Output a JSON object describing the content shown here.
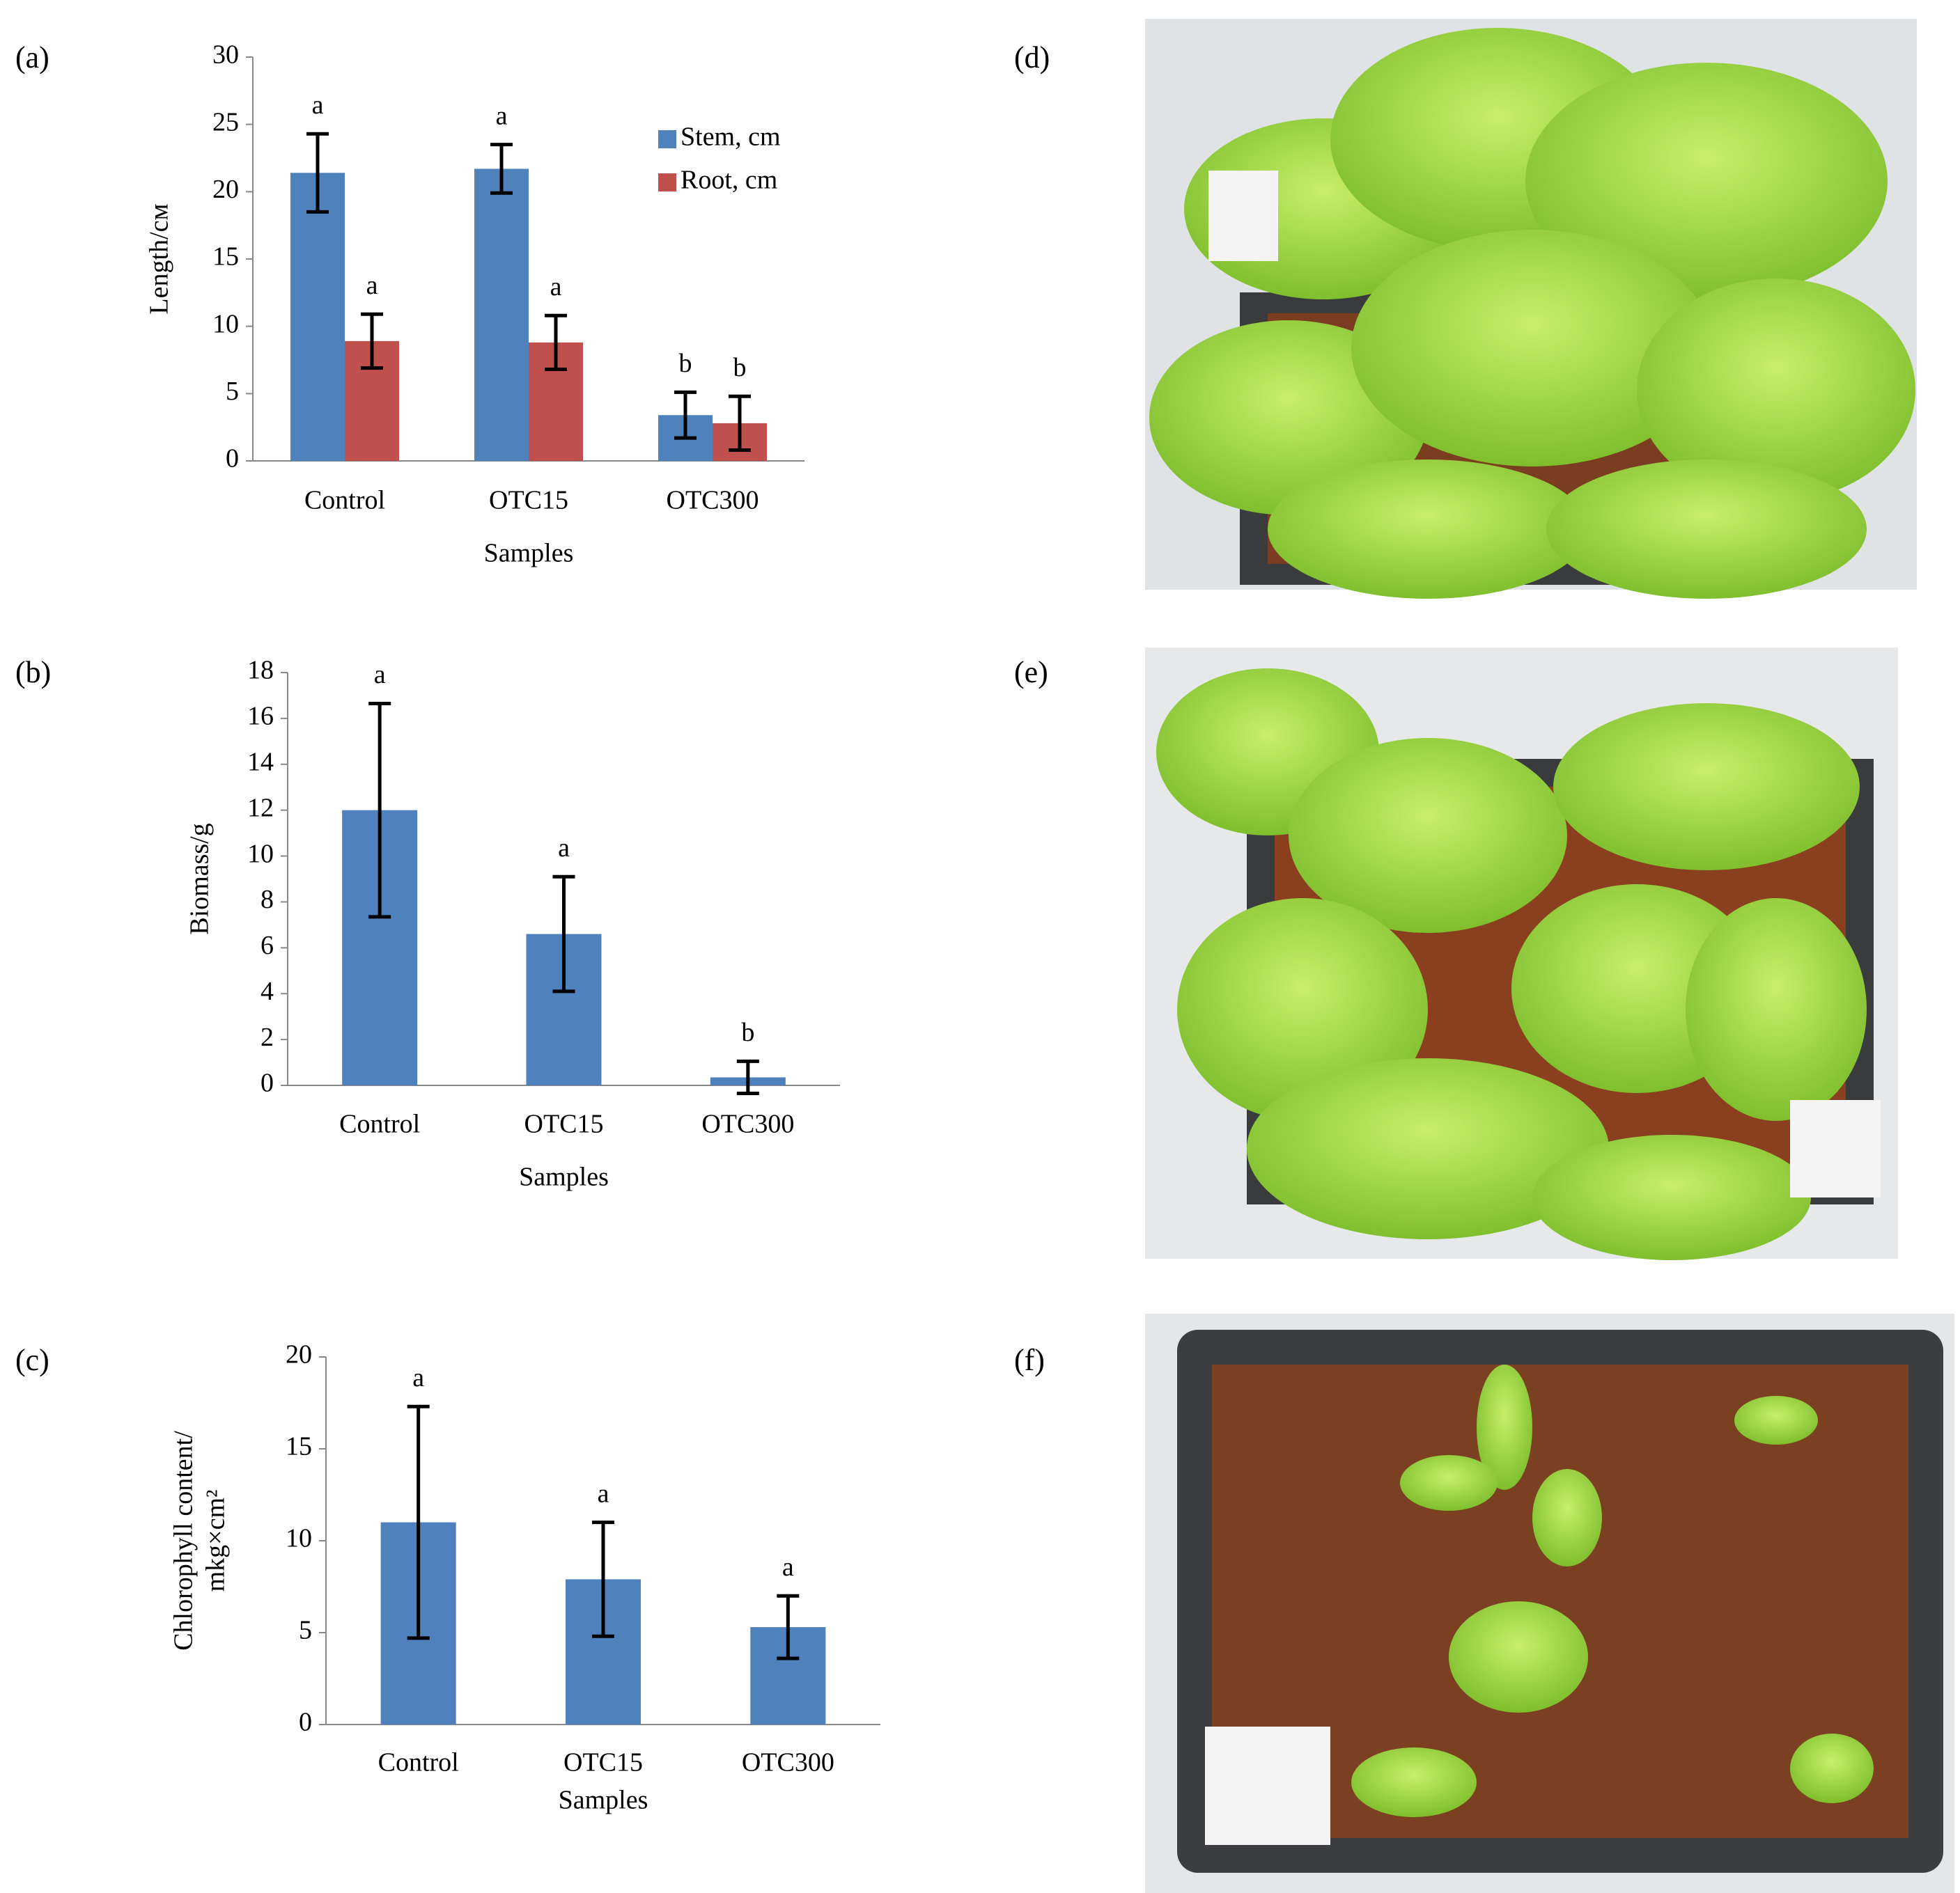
{
  "chart_data": [
    {
      "type": "bar",
      "panel_label": "(a)",
      "xlabel": "Samples",
      "ylabel": [
        "Length/см"
      ],
      "categories": [
        "Control",
        "OTC15",
        "OTC300"
      ],
      "series": [
        {
          "name": "Stem, cm",
          "color": "#4f81bd",
          "values": [
            21.4,
            21.7,
            3.4
          ],
          "errors": [
            2.9,
            1.8,
            1.7
          ],
          "significance": [
            "a",
            "a",
            "b"
          ]
        },
        {
          "name": "Root, cm",
          "color": "#c0504d",
          "values": [
            8.9,
            8.8,
            2.8
          ],
          "errors": [
            2.0,
            2.0,
            2.0
          ],
          "significance": [
            "a",
            "a",
            "b"
          ]
        }
      ],
      "ylim": [
        0,
        30
      ],
      "yticks": [
        0,
        5,
        10,
        15,
        20,
        25,
        30
      ],
      "legend": "top-right"
    },
    {
      "type": "bar",
      "panel_label": "(b)",
      "xlabel": "Samples",
      "ylabel": [
        "Biomass/g"
      ],
      "categories": [
        "Control",
        "OTC15",
        "OTC300"
      ],
      "series": [
        {
          "color": "#4f81bd",
          "values": [
            12.0,
            6.6,
            0.35
          ],
          "errors": [
            4.65,
            2.5,
            0.7
          ],
          "significance": [
            "a",
            "a",
            "b"
          ]
        }
      ],
      "ylim": [
        0,
        18
      ],
      "yticks": [
        0,
        2,
        4,
        6,
        8,
        10,
        12,
        14,
        16,
        18
      ]
    },
    {
      "type": "bar",
      "panel_label": "(c)",
      "xlabel": "Samples",
      "ylabel": [
        "Chlorophyll content/",
        "mkg×cm²"
      ],
      "categories": [
        "Control",
        "OTC15",
        "OTC300"
      ],
      "series": [
        {
          "color": "#4f81bd",
          "values": [
            11.0,
            7.9,
            5.3
          ],
          "errors": [
            6.3,
            3.1,
            1.7
          ],
          "significance": [
            "a",
            "a",
            "a"
          ]
        }
      ],
      "ylim": [
        0,
        20
      ],
      "yticks": [
        0,
        5,
        10,
        15,
        20
      ]
    }
  ],
  "photos": [
    {
      "panel_label": "(d)"
    },
    {
      "panel_label": "(e)"
    },
    {
      "panel_label": "(f)"
    }
  ]
}
